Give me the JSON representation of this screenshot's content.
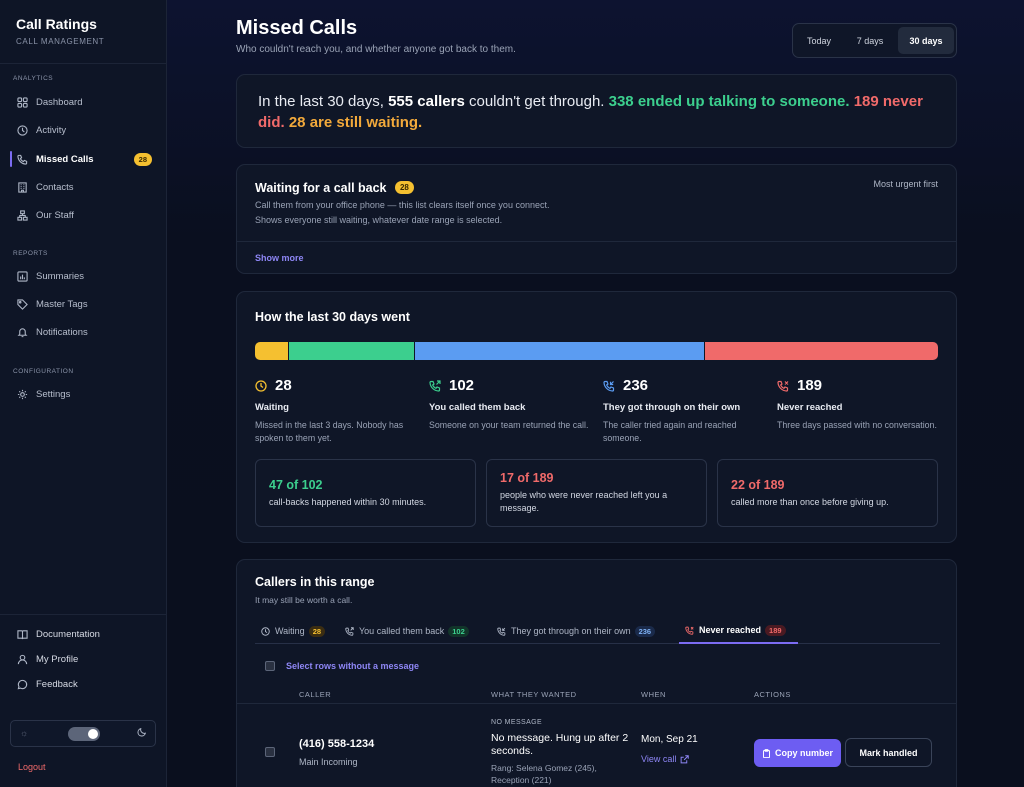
{
  "brand": {
    "title": "Call Ratings",
    "subtitle": "CALL MANAGEMENT"
  },
  "sidebar": {
    "analytics_label": "ANALYTICS",
    "analytics": [
      {
        "label": "Dashboard",
        "icon": "grid-icon"
      },
      {
        "label": "Activity",
        "icon": "clock-icon"
      },
      {
        "label": "Missed Calls",
        "icon": "phone-icon",
        "badge": "28",
        "active": true
      },
      {
        "label": "Contacts",
        "icon": "building-icon"
      },
      {
        "label": "Our Staff",
        "icon": "org-chart-icon"
      }
    ],
    "reports_label": "REPORTS",
    "reports": [
      {
        "label": "Summaries",
        "icon": "chart-icon"
      },
      {
        "label": "Master Tags",
        "icon": "tag-icon"
      },
      {
        "label": "Notifications",
        "icon": "bell-icon"
      }
    ],
    "config_label": "CONFIGURATION",
    "config": [
      {
        "label": "Settings",
        "icon": "gear-icon"
      }
    ],
    "footer": [
      {
        "label": "Documentation",
        "icon": "book-icon"
      },
      {
        "label": "My Profile",
        "icon": "user-icon"
      },
      {
        "label": "Feedback",
        "icon": "chat-icon"
      }
    ],
    "logout": "Logout"
  },
  "header": {
    "title": "Missed Calls",
    "subtitle": "Who couldn't reach you, and whether anyone got back to them.",
    "range_options": [
      "Today",
      "7 days",
      "30 days"
    ],
    "range_selected": "30 days"
  },
  "summary": {
    "p1": "In the last 30 days, ",
    "callers": "555 callers",
    "p2": " couldn't get through. ",
    "talked": "338 ended up talking to someone.",
    "never": "189 never did.",
    "waiting": "28 are still waiting."
  },
  "waiting_card": {
    "title": "Waiting for a call back",
    "count": "28",
    "sort": "Most urgent first",
    "line1": "Call them from your office phone — this list clears itself once you connect.",
    "line2": "Shows everyone still waiting, whatever date range is selected.",
    "show_more": "Show more"
  },
  "breakdown": {
    "title": "How the last 30 days went",
    "segments": [
      {
        "name": "Waiting",
        "value": 28,
        "color": "#f5c030"
      },
      {
        "name": "You called them back",
        "value": 102,
        "color": "#3ccf8e"
      },
      {
        "name": "They got through on their own",
        "value": 236,
        "color": "#5b9cf2"
      },
      {
        "name": "Never reached",
        "value": 189,
        "color": "#f06a6a"
      }
    ],
    "stats": [
      {
        "num": "28",
        "title": "Waiting",
        "desc": "Missed in the last 3 days. Nobody has spoken to them yet.",
        "icon": "clock-icon",
        "color": "#f5c030"
      },
      {
        "num": "102",
        "title": "You called them back",
        "desc": "Someone on your team returned the call.",
        "icon": "phone-outgoing-icon",
        "color": "#3ccf8e"
      },
      {
        "num": "236",
        "title": "They got through on their own",
        "desc": "The caller tried again and reached someone.",
        "icon": "phone-incoming-icon",
        "color": "#5b9cf2"
      },
      {
        "num": "189",
        "title": "Never reached",
        "desc": "Three days passed with no conversation.",
        "icon": "phone-missed-icon",
        "color": "#f06a6a"
      }
    ],
    "insights": [
      {
        "num": "47 of 102",
        "desc": "call-backs happened within 30 minutes.",
        "color": "#3ccf8e"
      },
      {
        "num": "17 of 189",
        "desc": "people who were never reached left you a message.",
        "color": "#f06a6a"
      },
      {
        "num": "22 of 189",
        "desc": "called more than once before giving up.",
        "color": "#f06a6a"
      }
    ]
  },
  "callers": {
    "title": "Callers in this range",
    "subtitle": "It may still be worth a call.",
    "tabs": [
      {
        "label": "Waiting",
        "count": "28",
        "icon": "clock-icon",
        "bg": "#3b2d12",
        "fg": "#f5c030"
      },
      {
        "label": "You called them back",
        "count": "102",
        "icon": "phone-outgoing-icon",
        "bg": "#12352a",
        "fg": "#3ccf8e"
      },
      {
        "label": "They got through on their own",
        "count": "236",
        "icon": "phone-incoming-icon",
        "bg": "#1a2a4a",
        "fg": "#7fb2f5"
      },
      {
        "label": "Never reached",
        "count": "189",
        "icon": "phone-missed-icon",
        "bg": "#4a1a22",
        "fg": "#f06a6a",
        "active": true
      }
    ],
    "select_label": "Select rows without a message",
    "columns": [
      "CALLER",
      "WHAT THEY WANTED",
      "WHEN",
      "ACTIONS"
    ],
    "rows": [
      {
        "phone": "(416) 558-1234",
        "line": "Main Incoming",
        "tag": "NO MESSAGE",
        "summary": "No message. Hung up after 2 seconds.",
        "rang": "Rang: Selena Gomez (245), Reception (221)",
        "date": "Mon, Sep 21",
        "view": "View call",
        "copy": "Copy number",
        "handled": "Mark handled"
      }
    ]
  }
}
